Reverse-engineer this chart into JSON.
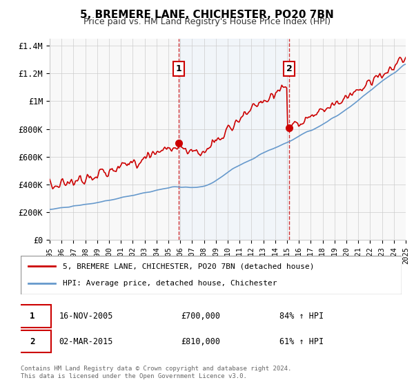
{
  "title": "5, BREMERE LANE, CHICHESTER, PO20 7BN",
  "subtitle": "Price paid vs. HM Land Registry's House Price Index (HPI)",
  "legend_line1": "5, BREMERE LANE, CHICHESTER, PO20 7BN (detached house)",
  "legend_line2": "HPI: Average price, detached house, Chichester",
  "transaction1_label": "1",
  "transaction1_date": "16-NOV-2005",
  "transaction1_price": "£700,000",
  "transaction1_hpi": "84% ↑ HPI",
  "transaction1_year": 2005.88,
  "transaction1_value": 700000,
  "transaction2_label": "2",
  "transaction2_date": "02-MAR-2015",
  "transaction2_price": "£810,000",
  "transaction2_hpi": "61% ↑ HPI",
  "transaction2_year": 2015.17,
  "transaction2_value": 810000,
  "hpi_color": "#6699cc",
  "price_color": "#cc0000",
  "highlight_color": "#ddeeff",
  "grid_color": "#cccccc",
  "background_color": "#f8f8f8",
  "ylim": [
    0,
    1450000
  ],
  "xlim_start": 1995,
  "xlim_end": 2025,
  "footer_text": "Contains HM Land Registry data © Crown copyright and database right 2024.\nThis data is licensed under the Open Government Licence v3.0.",
  "ylabel_ticks": [
    0,
    200000,
    400000,
    600000,
    800000,
    1000000,
    1200000,
    1400000
  ],
  "ylabel_labels": [
    "£0",
    "£200K",
    "£400K",
    "£600K",
    "£800K",
    "£1M",
    "£1.2M",
    "£1.4M"
  ]
}
